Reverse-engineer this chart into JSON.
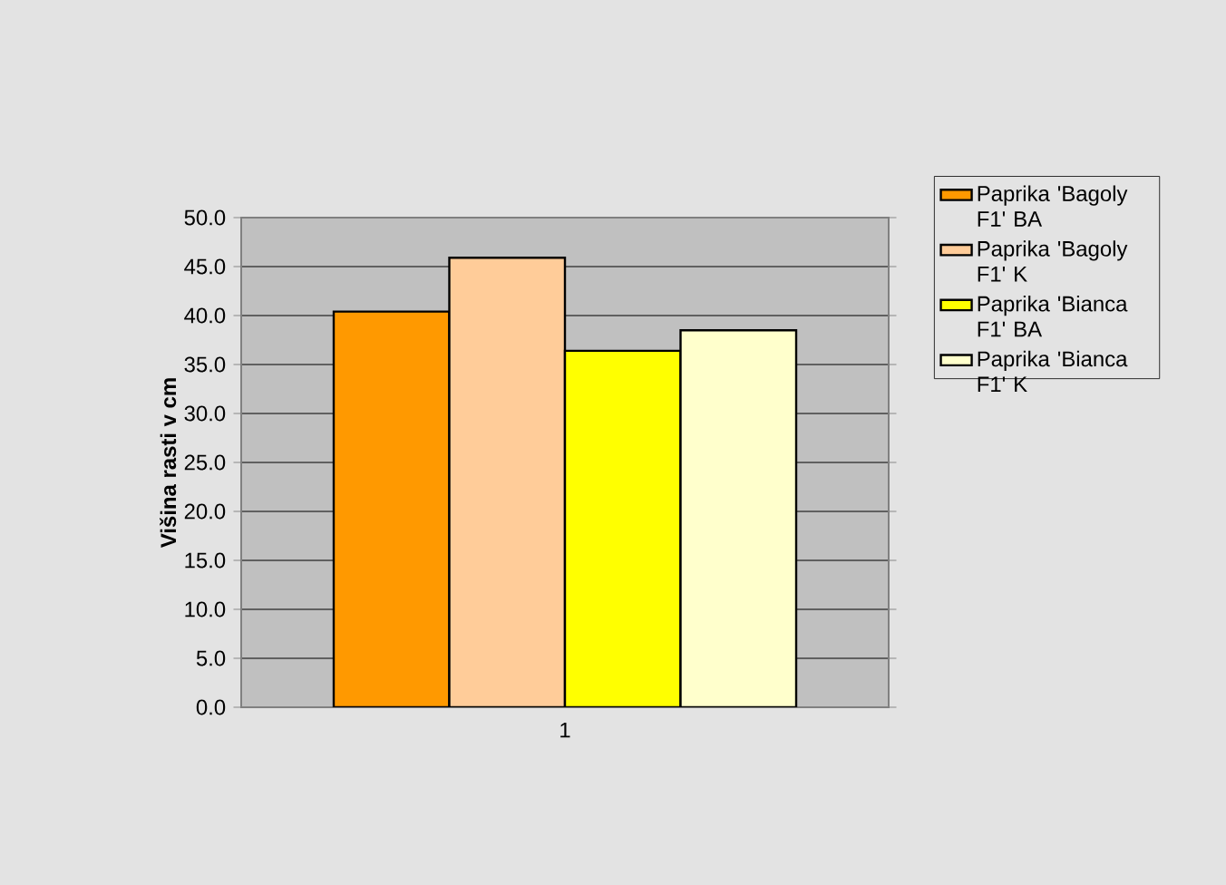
{
  "chart_data": {
    "type": "bar",
    "ylabel": "Višina rasti v cm",
    "categories": [
      "1"
    ],
    "series": [
      {
        "name": "Paprika 'Bagoly F1' BA",
        "color": "#ff9900",
        "values": [
          40.4
        ]
      },
      {
        "name": "Paprika 'Bagoly F1' K",
        "color": "#ffcc99",
        "values": [
          45.9
        ]
      },
      {
        "name": "Paprika 'Bianca F1' BA",
        "color": "#ffff00",
        "values": [
          36.4
        ]
      },
      {
        "name": "Paprika 'Bianca F1' K",
        "color": "#ffffcc",
        "values": [
          38.5
        ]
      }
    ],
    "ylim": [
      0,
      50
    ],
    "yticks": [
      {
        "value": 0,
        "label": "0.0"
      },
      {
        "value": 5,
        "label": "5.0"
      },
      {
        "value": 10,
        "label": "10.0"
      },
      {
        "value": 15,
        "label": "15.0"
      },
      {
        "value": 20,
        "label": "20.0"
      },
      {
        "value": 25,
        "label": "25.0"
      },
      {
        "value": 30,
        "label": "30.0"
      },
      {
        "value": 35,
        "label": "35.0"
      },
      {
        "value": 40,
        "label": "40.0"
      },
      {
        "value": 45,
        "label": "45.0"
      },
      {
        "value": 50,
        "label": "50.0"
      }
    ],
    "grid": "y",
    "legend": "right"
  }
}
